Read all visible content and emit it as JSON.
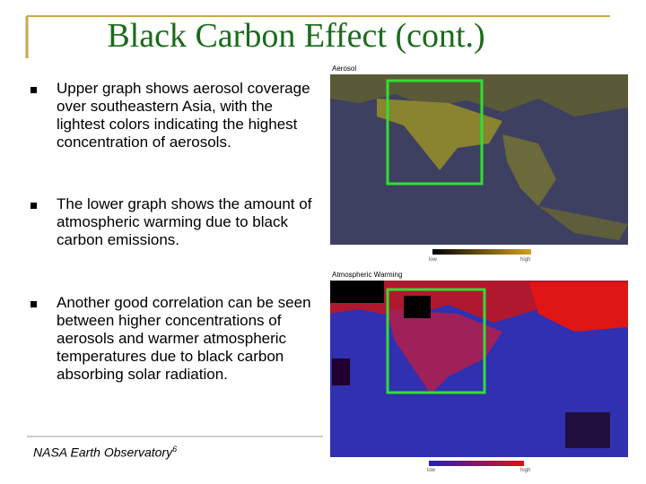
{
  "header": {
    "title": "Black Carbon Effect (cont.)"
  },
  "bullets": [
    "Upper graph shows aerosol coverage over southeastern Asia, with the lightest colors indicating the highest concentration of aerosols.",
    "The lower graph shows the amount of atmospheric warming due to black carbon emissions.",
    "Another good correlation can be seen between higher concentrations of aerosols and warmer atmospheric temperatures due to black carbon absorbing solar radiation."
  ],
  "citation": {
    "text": "NASA Earth Observatory",
    "superscript": "6"
  },
  "images": [
    {
      "label": "Aerosol",
      "scale_low": "low",
      "scale_high": "high"
    },
    {
      "label": "Atmospheric Warming",
      "scale_low": "low",
      "scale_high": "high"
    }
  ]
}
